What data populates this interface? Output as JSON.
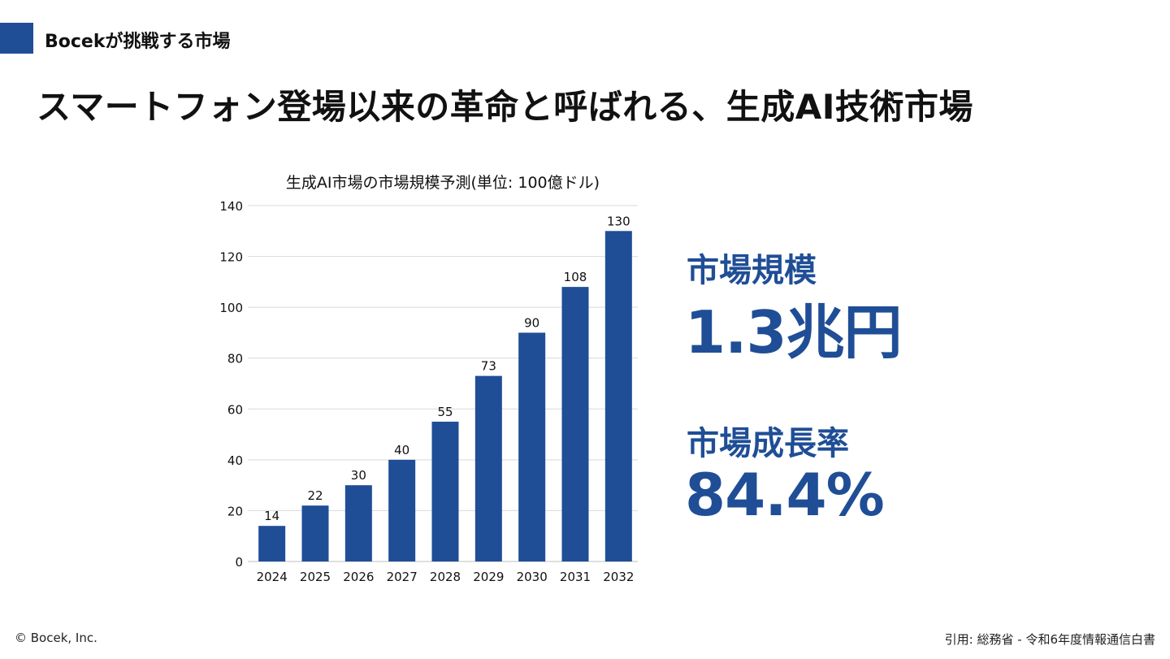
{
  "header": {
    "section_label": "Bocekが挑戦する市場",
    "title": "スマートフォン登場以来の革命と呼ばれる、生成AI技術市場"
  },
  "kpis": {
    "market_size_label": "市場規模",
    "market_size_value": "1.3兆円",
    "growth_rate_label": "市場成長率",
    "growth_rate_value": "84.4%"
  },
  "footer": {
    "copyright": "© Bocek, Inc.",
    "source": "引用: 総務省 - 令和6年度情報通信白書"
  },
  "colors": {
    "accent": "#1f4e96",
    "grid": "#d9d9d9"
  },
  "chart_data": {
    "type": "bar",
    "title": "生成AI市場の市場規模予測(単位: 100億ドル)",
    "xlabel": "",
    "ylabel": "",
    "categories": [
      "2024",
      "2025",
      "2026",
      "2027",
      "2028",
      "2029",
      "2030",
      "2031",
      "2032"
    ],
    "values": [
      14,
      22,
      30,
      40,
      55,
      73,
      90,
      108,
      130
    ],
    "ylim": [
      0,
      140
    ],
    "yticks": [
      0,
      20,
      40,
      60,
      80,
      100,
      120,
      140
    ],
    "grid": true,
    "data_labels": true
  }
}
